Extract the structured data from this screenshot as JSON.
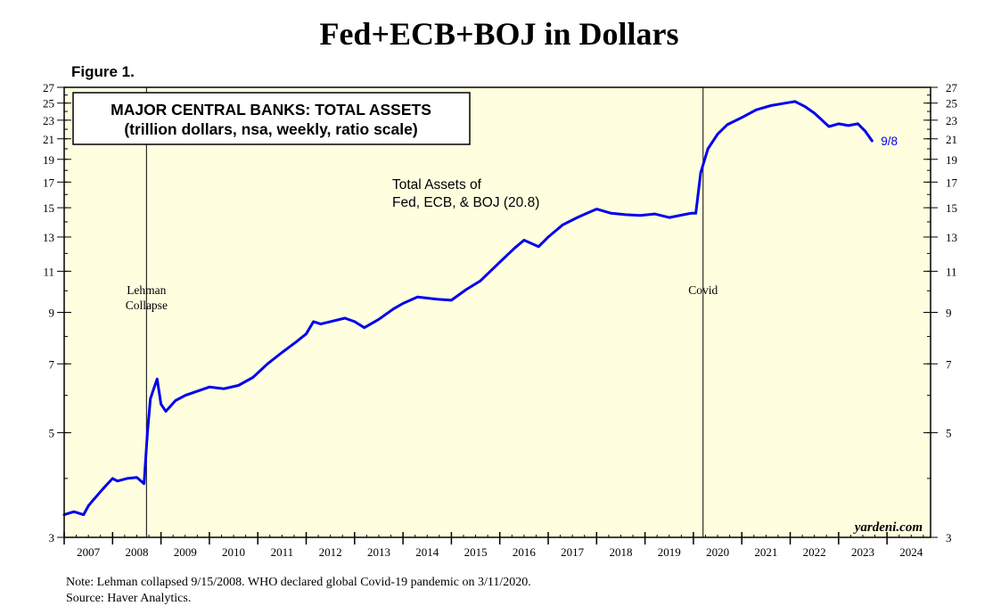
{
  "page_title": "Fed+ECB+BOJ in Dollars",
  "figure_label": "Figure 1.",
  "chart_data": {
    "type": "line",
    "title_box": [
      "MAJOR CENTRAL BANKS: TOTAL ASSETS",
      "(trillion dollars, nsa, weekly, ratio scale)"
    ],
    "series_label": [
      "Total Assets of",
      "Fed, ECB, & BOJ (20.8)"
    ],
    "end_label": "9/8",
    "y_scale": "log",
    "ylim": [
      3,
      27
    ],
    "y_ticks": [
      3,
      5,
      7,
      9,
      11,
      13,
      15,
      17,
      19,
      21,
      23,
      25,
      27
    ],
    "x_domain": [
      2007.0,
      2024.9
    ],
    "x_ticks": [
      "2007",
      "2008",
      "2009",
      "2010",
      "2011",
      "2012",
      "2013",
      "2014",
      "2015",
      "2016",
      "2017",
      "2018",
      "2019",
      "2020",
      "2021",
      "2022",
      "2023",
      "2024"
    ],
    "series": [
      {
        "name": "Total Assets of Fed, ECB, & BOJ",
        "color": "#0000ee",
        "x": [
          2007.0,
          2007.2,
          2007.4,
          2007.5,
          2007.6,
          2007.8,
          2008.0,
          2008.1,
          2008.3,
          2008.5,
          2008.65,
          2008.72,
          2008.78,
          2008.85,
          2008.92,
          2009.0,
          2009.1,
          2009.2,
          2009.3,
          2009.5,
          2009.7,
          2010.0,
          2010.3,
          2010.6,
          2010.9,
          2011.2,
          2011.5,
          2011.8,
          2012.0,
          2012.15,
          2012.3,
          2012.5,
          2012.8,
          2013.0,
          2013.2,
          2013.5,
          2013.8,
          2014.0,
          2014.3,
          2014.7,
          2015.0,
          2015.3,
          2015.6,
          2016.0,
          2016.3,
          2016.5,
          2016.8,
          2017.0,
          2017.3,
          2017.6,
          2017.8,
          2018.0,
          2018.3,
          2018.6,
          2018.9,
          2019.2,
          2019.5,
          2019.8,
          2019.95,
          2020.05,
          2020.15,
          2020.3,
          2020.5,
          2020.7,
          2021.0,
          2021.3,
          2021.6,
          2021.9,
          2022.1,
          2022.3,
          2022.5,
          2022.8,
          2023.0,
          2023.2,
          2023.4,
          2023.55,
          2023.69
        ],
        "values": [
          3.35,
          3.4,
          3.35,
          3.5,
          3.6,
          3.8,
          4.0,
          3.95,
          4.0,
          4.02,
          3.9,
          5.0,
          5.9,
          6.2,
          6.5,
          5.75,
          5.55,
          5.7,
          5.85,
          6.0,
          6.1,
          6.25,
          6.2,
          6.3,
          6.55,
          7.0,
          7.4,
          7.8,
          8.1,
          8.6,
          8.5,
          8.6,
          8.75,
          8.6,
          8.35,
          8.7,
          9.15,
          9.4,
          9.7,
          9.6,
          9.55,
          10.05,
          10.5,
          11.5,
          12.3,
          12.8,
          12.4,
          13.0,
          13.8,
          14.3,
          14.6,
          14.9,
          14.6,
          14.5,
          14.45,
          14.55,
          14.3,
          14.5,
          14.6,
          14.6,
          17.8,
          20.0,
          21.5,
          22.5,
          23.3,
          24.2,
          24.7,
          25.0,
          25.2,
          24.6,
          23.8,
          22.3,
          22.6,
          22.4,
          22.6,
          21.8,
          20.8
        ]
      }
    ],
    "annotations": [
      {
        "x": 2008.7,
        "label": [
          "Lehman",
          "Collapse"
        ]
      },
      {
        "x": 2020.2,
        "label": [
          "Covid"
        ]
      }
    ],
    "watermark": "yardeni.com",
    "background": "#ffffe0"
  },
  "notes": {
    "line1": "Note: Lehman collapsed 9/15/2008. WHO declared global Covid-19 pandemic on 3/11/2020.",
    "line2": "Source: Haver Analytics."
  }
}
